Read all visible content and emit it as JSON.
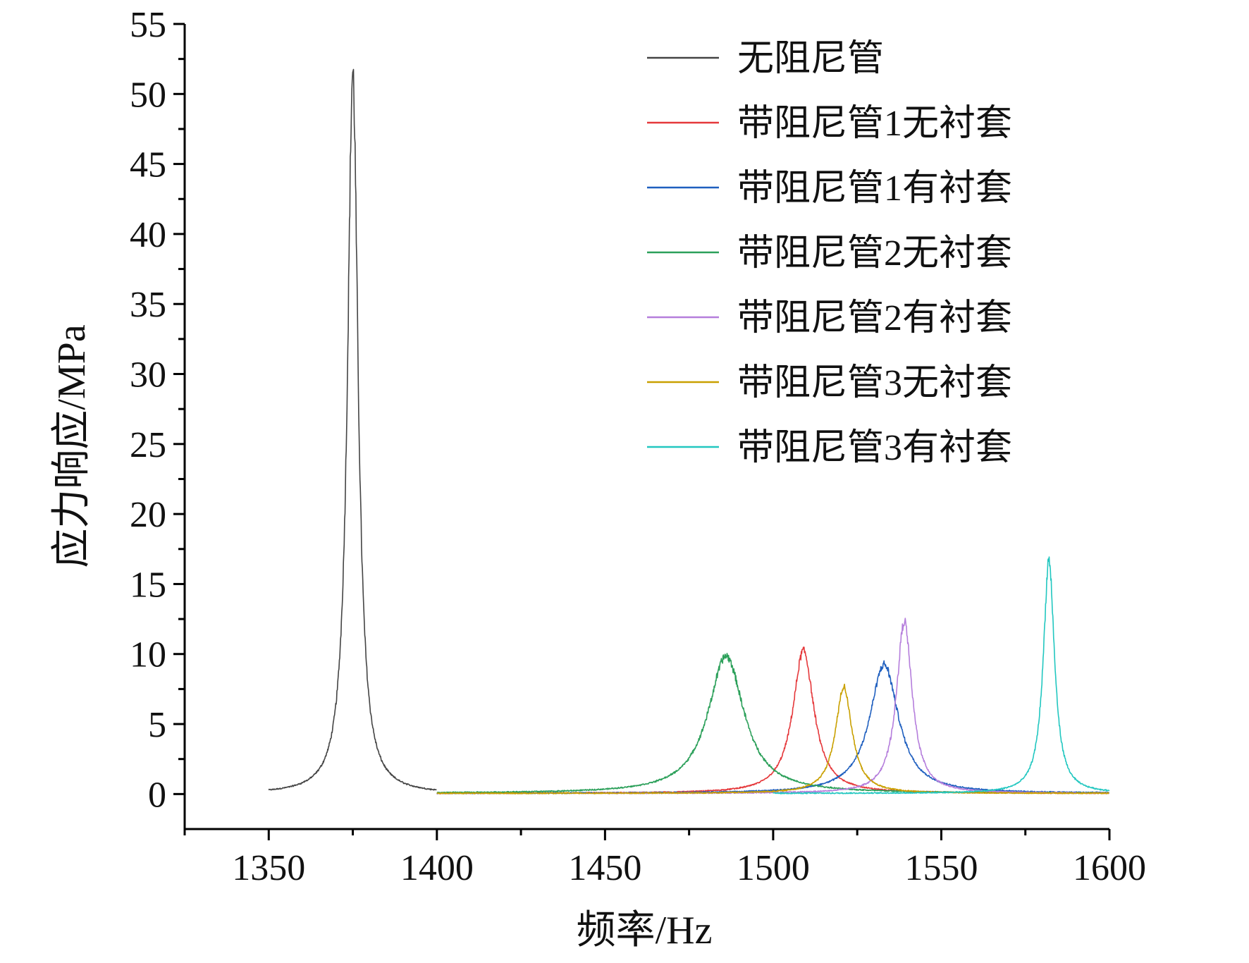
{
  "chart_data": {
    "type": "line",
    "title": "",
    "xlabel": "频率/Hz",
    "ylabel": "应力响应/MPa",
    "xlim": [
      1325,
      1600
    ],
    "ylim": [
      -2.5,
      55
    ],
    "xticks": [
      1350,
      1400,
      1450,
      1500,
      1550,
      1600
    ],
    "xtick_labels": [
      "1350",
      "1400",
      "1450",
      "1500",
      "1550",
      "1600"
    ],
    "yticks": [
      0,
      5,
      10,
      15,
      20,
      25,
      30,
      35,
      40,
      45,
      50,
      55
    ],
    "ytick_labels": [
      "0",
      "5",
      "10",
      "15",
      "20",
      "25",
      "30",
      "35",
      "40",
      "45",
      "50",
      "55"
    ],
    "legend_position": "top-right",
    "series": [
      {
        "name": "无阻尼管",
        "color": "#444444",
        "x_range": [
          1350,
          1400
        ],
        "peak_x": 1375,
        "peak_y": 51.5,
        "width": 1.9,
        "base": 0
      },
      {
        "name": "带阻尼管1无衬套",
        "color": "#e5383b",
        "x_range": [
          1400,
          1600
        ],
        "peak_x": 1509,
        "peak_y": 10.2,
        "width": 3.8,
        "base": 0.05
      },
      {
        "name": "带阻尼管1有衬套",
        "color": "#1f5fbf",
        "x_range": [
          1400,
          1600
        ],
        "peak_x": 1533,
        "peak_y": 9.2,
        "width": 5.2,
        "base": 0.05
      },
      {
        "name": "带阻尼管2无衬套",
        "color": "#2ca05a",
        "x_range": [
          1400,
          1600
        ],
        "peak_x": 1486,
        "peak_y": 9.8,
        "width": 6.5,
        "base": 0.05
      },
      {
        "name": "带阻尼管2有衬套",
        "color": "#b57edc",
        "x_range": [
          1450,
          1600
        ],
        "peak_x": 1539,
        "peak_y": 12.3,
        "width": 2.8,
        "base": 0.05
      },
      {
        "name": "带阻尼管3无衬套",
        "color": "#c9a000",
        "x_range": [
          1400,
          1600
        ],
        "peak_x": 1521,
        "peak_y": 7.6,
        "width": 3.0,
        "base": 0.05
      },
      {
        "name": "带阻尼管3有衬套",
        "color": "#22c7c0",
        "x_range": [
          1500,
          1600
        ],
        "peak_x": 1582,
        "peak_y": 16.7,
        "width": 2.0,
        "base": 0.05
      }
    ]
  }
}
